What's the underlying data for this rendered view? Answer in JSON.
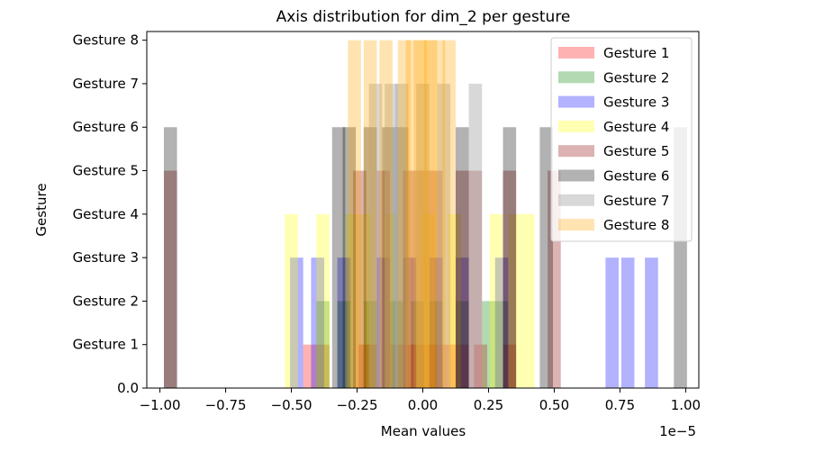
{
  "chart_data": {
    "type": "bar",
    "title": "Axis distribution for dim_2 per gesture",
    "xlabel": "Mean values",
    "ylabel": "Gesture",
    "x_offset_label": "1e−5",
    "xlim": [
      -1.05,
      1.05
    ],
    "ylim": [
      0,
      8.2
    ],
    "x_ticks": [
      -1.0,
      -0.75,
      -0.5,
      -0.25,
      0.0,
      0.25,
      0.5,
      0.75,
      1.0
    ],
    "x_tick_labels": [
      "−1.00",
      "−0.75",
      "−0.50",
      "−0.25",
      "0.00",
      "0.25",
      "0.50",
      "0.75",
      "1.00"
    ],
    "y_ticks": [
      0,
      1,
      2,
      3,
      4,
      5,
      6,
      7,
      8
    ],
    "y_tick_labels": [
      "0.0",
      "Gesture 1",
      "Gesture 2",
      "Gesture 3",
      "Gesture 4",
      "Gesture 5",
      "Gesture 6",
      "Gesture 7",
      "Gesture 8"
    ],
    "legend_position": "top-right",
    "bar_width": 0.05,
    "series": [
      {
        "name": "Gesture 1",
        "color": "#ff0000",
        "opacity": 0.3,
        "height": 1,
        "x": [
          -0.43,
          -0.38,
          -0.22,
          -0.2,
          -0.1,
          -0.05,
          -0.02,
          0.02,
          0.05,
          0.1,
          0.15,
          0.22,
          0.33
        ]
      },
      {
        "name": "Gesture 2",
        "color": "#008000",
        "opacity": 0.3,
        "height": 2,
        "x": [
          -0.38,
          -0.3,
          -0.2,
          -0.1,
          -0.02,
          0.05,
          0.15,
          0.25,
          0.3
        ]
      },
      {
        "name": "Gesture 3",
        "color": "#0000ff",
        "opacity": 0.3,
        "height": 3,
        "x": [
          -0.48,
          -0.4,
          -0.3,
          -0.15,
          -0.05,
          0.05,
          0.15,
          0.3,
          0.72,
          0.78,
          0.87
        ]
      },
      {
        "name": "Gesture 4",
        "color": "#ffff00",
        "opacity": 0.3,
        "height": 4,
        "x": [
          -0.5,
          -0.38,
          -0.27,
          -0.22,
          -0.12,
          0.02,
          0.12,
          0.28,
          0.35,
          0.4
        ]
      },
      {
        "name": "Gesture 5",
        "color": "#8b0000",
        "opacity": 0.3,
        "height": 5,
        "x": [
          -0.96,
          -0.24,
          -0.15,
          -0.05,
          0.0,
          0.05,
          0.15,
          0.2,
          0.33,
          0.5
        ]
      },
      {
        "name": "Gesture 6",
        "color": "#000000",
        "opacity": 0.3,
        "height": 6,
        "x": [
          -0.96,
          -0.32,
          -0.28,
          -0.2,
          -0.13,
          -0.08,
          0.15,
          0.33,
          0.47,
          0.98
        ]
      },
      {
        "name": "Gesture 7",
        "color": "#a9a9a9",
        "opacity": 0.45,
        "height": 7,
        "x": [
          -0.18,
          -0.12,
          -0.08,
          0.0,
          0.08,
          0.2
        ]
      },
      {
        "name": "Gesture 8",
        "color": "#ffa500",
        "opacity": 0.3,
        "height": 8,
        "x": [
          -0.26,
          -0.2,
          -0.14,
          -0.07,
          -0.04,
          -0.01,
          0.01,
          0.03,
          0.06,
          0.1
        ]
      }
    ]
  }
}
